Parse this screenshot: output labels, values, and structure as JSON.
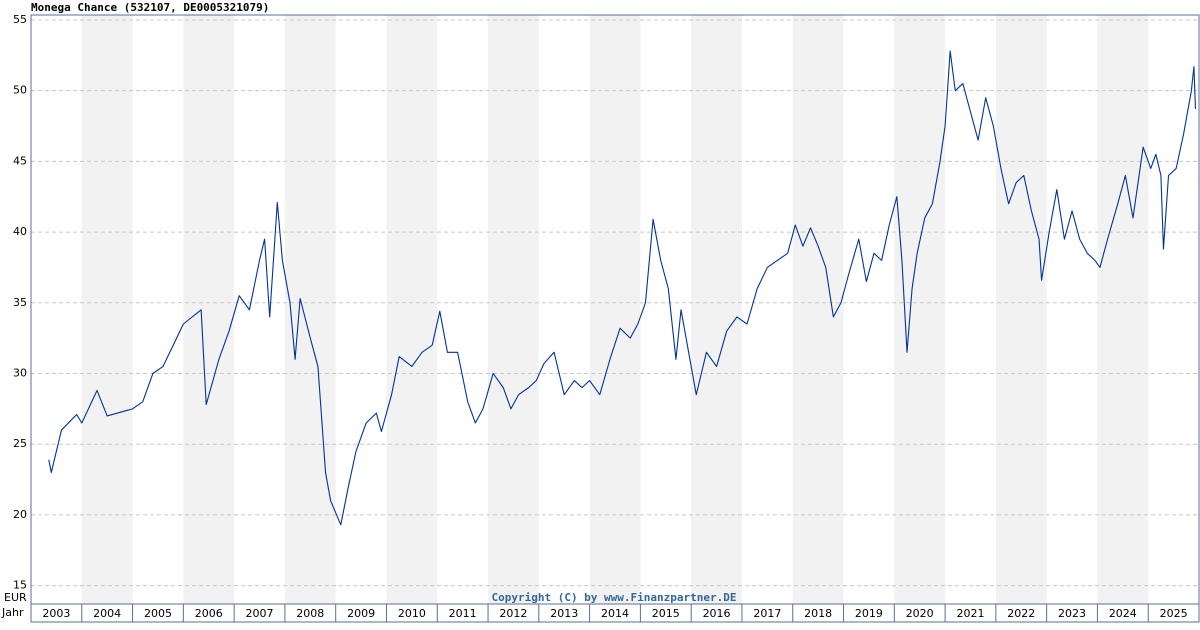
{
  "chart_data": {
    "type": "line",
    "title": "Monega Chance (532107, DE0005321079)",
    "y_label": "EUR",
    "x_label": "Jahr",
    "annotation": "Copyright (C) by www.Finanzpartner.DE",
    "xlim": [
      2003,
      2026
    ],
    "xticks": [
      2003,
      2004,
      2005,
      2006,
      2007,
      2008,
      2009,
      2010,
      2011,
      2012,
      2013,
      2014,
      2015,
      2016,
      2017,
      2018,
      2019,
      2020,
      2021,
      2022,
      2023,
      2024,
      2025
    ],
    "ylim": [
      13.7,
      55.35
    ],
    "yticks": [
      15,
      20,
      25,
      30,
      35,
      40,
      45,
      50,
      55
    ],
    "grid": true,
    "band_color": "#f2f2f2",
    "series": [
      {
        "name": "Monega Chance",
        "color": "#003399",
        "x": [
          2003.35,
          2003.4,
          2003.6,
          2003.9,
          2004.0,
          2004.3,
          2004.5,
          2004.8,
          2005.0,
          2005.2,
          2005.4,
          2005.6,
          2005.8,
          2006.0,
          2006.35,
          2006.45,
          2006.7,
          2006.9,
          2007.1,
          2007.3,
          2007.5,
          2007.6,
          2007.7,
          2007.85,
          2007.95,
          2008.1,
          2008.2,
          2008.3,
          2008.5,
          2008.65,
          2008.8,
          2008.9,
          2009.1,
          2009.25,
          2009.4,
          2009.6,
          2009.8,
          2009.9,
          2010.1,
          2010.25,
          2010.5,
          2010.7,
          2010.9,
          2011.05,
          2011.2,
          2011.4,
          2011.6,
          2011.75,
          2011.9,
          2012.1,
          2012.3,
          2012.45,
          2012.6,
          2012.8,
          2012.95,
          2013.1,
          2013.3,
          2013.5,
          2013.7,
          2013.85,
          2014.0,
          2014.2,
          2014.4,
          2014.6,
          2014.8,
          2014.95,
          2015.1,
          2015.25,
          2015.4,
          2015.55,
          2015.7,
          2015.8,
          2015.95,
          2016.1,
          2016.3,
          2016.5,
          2016.7,
          2016.9,
          2017.1,
          2017.3,
          2017.5,
          2017.7,
          2017.9,
          2018.05,
          2018.2,
          2018.35,
          2018.5,
          2018.65,
          2018.8,
          2018.95,
          2019.1,
          2019.3,
          2019.45,
          2019.6,
          2019.75,
          2019.9,
          2020.05,
          2020.15,
          2020.25,
          2020.35,
          2020.45,
          2020.6,
          2020.75,
          2020.9,
          2021.0,
          2021.1,
          2021.2,
          2021.35,
          2021.5,
          2021.65,
          2021.8,
          2021.95,
          2022.1,
          2022.25,
          2022.4,
          2022.55,
          2022.7,
          2022.85,
          2022.9,
          2023.05,
          2023.2,
          2023.35,
          2023.5,
          2023.65,
          2023.8,
          2023.95,
          2024.05,
          2024.2,
          2024.4,
          2024.55,
          2024.7,
          2024.9,
          2025.05,
          2025.15,
          2025.25,
          2025.3,
          2025.4,
          2025.55,
          2025.7,
          2025.85,
          2025.9,
          2025.93
        ],
        "values": [
          23.9,
          23.0,
          26.0,
          27.1,
          26.5,
          28.8,
          27.0,
          27.3,
          27.5,
          28.0,
          30.0,
          30.5,
          32.0,
          33.5,
          34.5,
          27.8,
          31.0,
          33.0,
          35.5,
          34.5,
          38.0,
          39.5,
          34.0,
          42.1,
          38.0,
          35.0,
          31.0,
          35.3,
          32.5,
          30.5,
          23.0,
          21.0,
          19.3,
          22.0,
          24.5,
          26.5,
          27.2,
          25.9,
          28.5,
          31.2,
          30.5,
          31.5,
          32.0,
          34.4,
          31.5,
          31.5,
          28.0,
          26.5,
          27.5,
          30.0,
          29.0,
          27.5,
          28.5,
          29.0,
          29.5,
          30.7,
          31.5,
          28.5,
          29.5,
          29.0,
          29.5,
          28.5,
          31.0,
          33.2,
          32.5,
          33.5,
          35.0,
          40.9,
          38.0,
          36.0,
          31.0,
          34.5,
          31.5,
          28.5,
          31.5,
          30.5,
          33.0,
          34.0,
          33.5,
          36.0,
          37.5,
          38.0,
          38.5,
          40.5,
          39.0,
          40.3,
          39.0,
          37.5,
          34.0,
          35.0,
          37.0,
          39.5,
          36.5,
          38.5,
          38.0,
          40.5,
          42.5,
          38.0,
          31.5,
          36.0,
          38.5,
          41.0,
          42.0,
          45.0,
          47.5,
          52.8,
          50.0,
          50.5,
          48.5,
          46.5,
          49.5,
          47.5,
          44.5,
          42.0,
          43.5,
          44.0,
          41.5,
          39.5,
          36.6,
          40.0,
          43.0,
          39.5,
          41.5,
          39.5,
          38.5,
          38.0,
          37.5,
          39.5,
          42.0,
          44.0,
          41.0,
          46.0,
          44.5,
          45.5,
          44.0,
          38.8,
          44.0,
          44.5,
          47.0,
          50.0,
          51.7,
          48.7
        ]
      }
    ]
  }
}
